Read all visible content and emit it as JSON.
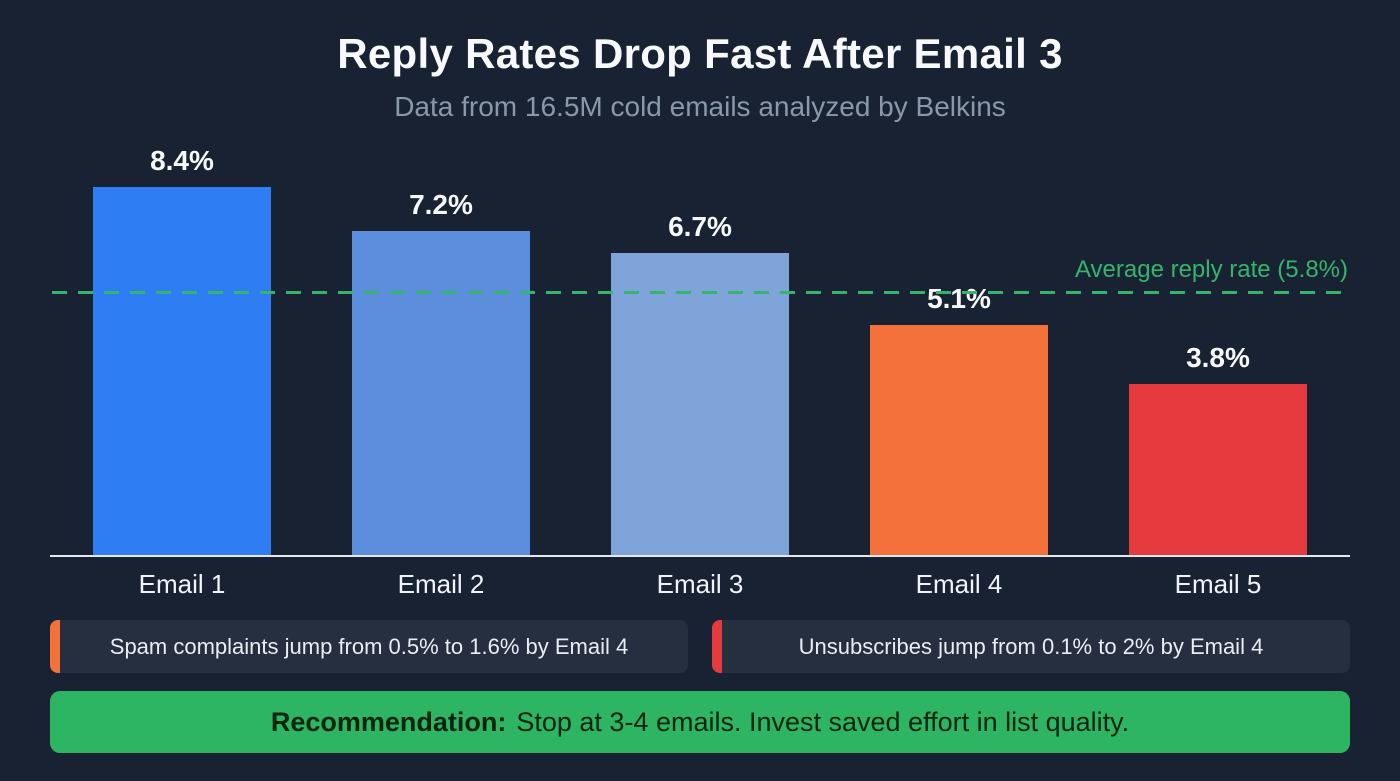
{
  "chart_data": {
    "type": "bar",
    "title": "Reply Rates Drop Fast After Email 3",
    "subtitle": "Data from 16.5M cold emails analyzed by Belkins",
    "categories": [
      "Email 1",
      "Email 2",
      "Email 3",
      "Email 4",
      "Email 5"
    ],
    "values": [
      8.4,
      7.2,
      6.7,
      5.1,
      3.8
    ],
    "value_labels": [
      "8.4%",
      "7.2%",
      "6.7%",
      "5.1%",
      "3.8%"
    ],
    "bar_colors": [
      "#2e7df2",
      "#5c8edd",
      "#7ea4d9",
      "#f4713a",
      "#e63b3e"
    ],
    "ylim": [
      0,
      9.1
    ],
    "grid": false,
    "legend": "none",
    "average_line": {
      "value": 5.8,
      "label": "Average reply rate (5.8%)",
      "color": "#35b56b"
    }
  },
  "callouts": [
    {
      "id": "spam-complaints",
      "accent_color": "#f4713a",
      "text": "Spam complaints jump from 0.5% to 1.6% by Email 4"
    },
    {
      "id": "unsubscribes",
      "accent_color": "#e63b3e",
      "text": "Unsubscribes jump from 0.1% to 2% by Email 4"
    }
  ],
  "recommendation": {
    "prefix": "Recommendation:",
    "text": "Stop at 3-4 emails. Invest saved effort in list quality.",
    "bg_color": "#2db563",
    "text_color": "#07240f"
  },
  "colors": {
    "background": "#182233",
    "axis": "#e3e8ee",
    "title_text": "#f7f9fc",
    "subtitle_text": "#8a98ab",
    "callout_bg": "#262f3f",
    "callout_text": "#e9edf4"
  }
}
